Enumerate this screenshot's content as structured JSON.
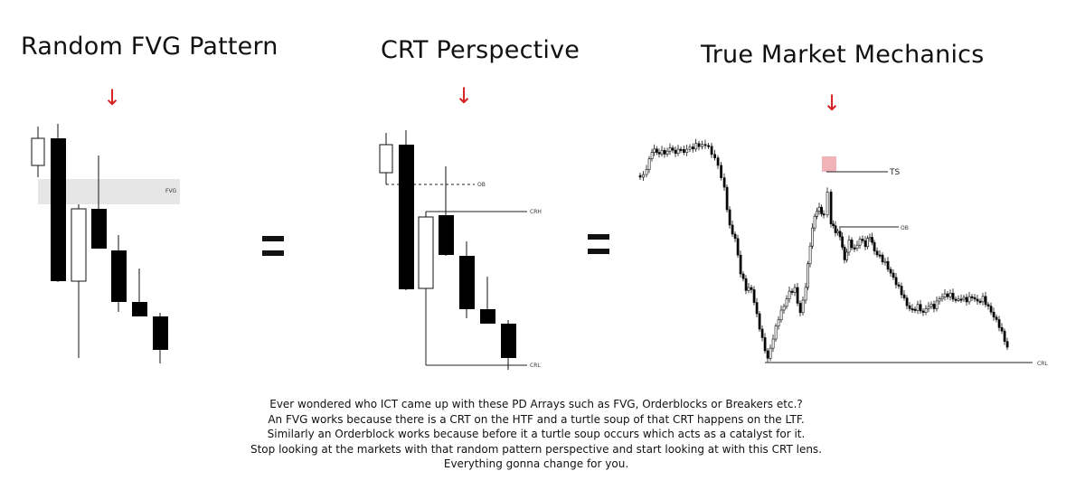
{
  "titles": {
    "random_fvg": "Random FVG Pattern",
    "crt": "CRT Perspective",
    "market": "True Market Mechanics"
  },
  "arrow_glyph": "↓",
  "labels": {
    "fvg": "FVG",
    "ob": "OB",
    "crh": "CRH",
    "crl": "CRL",
    "ts": "TS"
  },
  "caption": [
    "Ever wondered who ICT came up with these PD Arrays such as FVG, Orderblocks or Breakers etc.?",
    "An FVG works because there is a CRT on the HTF and a turtle soup of that CRT happens on the LTF.",
    "Similarly an Orderblock works because before it a turtle soup occurs which acts as a catalyst for it.",
    "Stop looking at the markets with that random pattern perspective and start looking at with this CRT lens.",
    "Everything gonna change for you."
  ],
  "colors": {
    "arrow": "#d62020",
    "fvg_zone": "#e6e6e6",
    "ts_highlight": "#f2b3b8",
    "bear_candle": "#000000",
    "bull_candle": "#ffffff"
  }
}
